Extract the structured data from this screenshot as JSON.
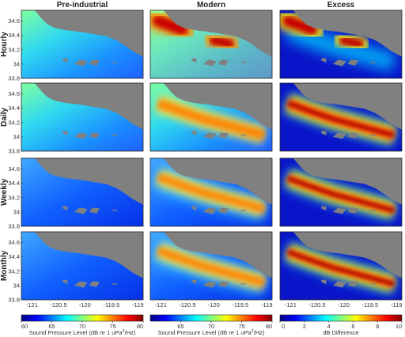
{
  "chart_data": {
    "type": "heatmap",
    "columns": [
      "Pre-industrial",
      "Modern",
      "Excess"
    ],
    "rows": [
      "Hourly",
      "Daily",
      "Weekly",
      "Monthly"
    ],
    "xlim": [
      -121.2,
      -118.9
    ],
    "ylim": [
      33.8,
      34.75
    ],
    "xticks": [
      -121,
      -120.5,
      -120,
      -119.5,
      -119
    ],
    "xtick_labels": [
      "-121",
      "-120.5",
      "-120",
      "-119.5",
      "-119"
    ],
    "yticks": [
      33.8,
      34,
      34.2,
      34.4,
      34.6
    ],
    "ytick_labels": [
      "33.8",
      "34",
      "34.2",
      "34.4",
      "34.6"
    ],
    "colorbars": [
      {
        "label": "Sound Pressure Level (dB re 1 uPa",
        "label_sup": "2",
        "label_end": "/Hz)",
        "min": 60,
        "max": 80,
        "ticks": [
          60,
          65,
          70,
          75,
          80
        ],
        "tick_labels": [
          "60",
          "65",
          "70",
          "75",
          "80"
        ]
      },
      {
        "label": "Sound Pressure Level (dB re 1 uPa",
        "label_sup": "2",
        "label_end": "/Hz)",
        "min": 60,
        "max": 80,
        "ticks": [
          65,
          70,
          75,
          80
        ],
        "tick_labels": [
          "65",
          "70",
          "75",
          "80"
        ]
      },
      {
        "label": "dB Difference",
        "label_sup": "",
        "label_end": "",
        "min": 0,
        "max": 10,
        "ticks": [
          0,
          2,
          4,
          6,
          8,
          10
        ],
        "tick_labels": [
          "0",
          "2",
          "4",
          "6",
          "8",
          "10"
        ]
      }
    ],
    "colormap": "jet",
    "land_color": "#808080"
  }
}
